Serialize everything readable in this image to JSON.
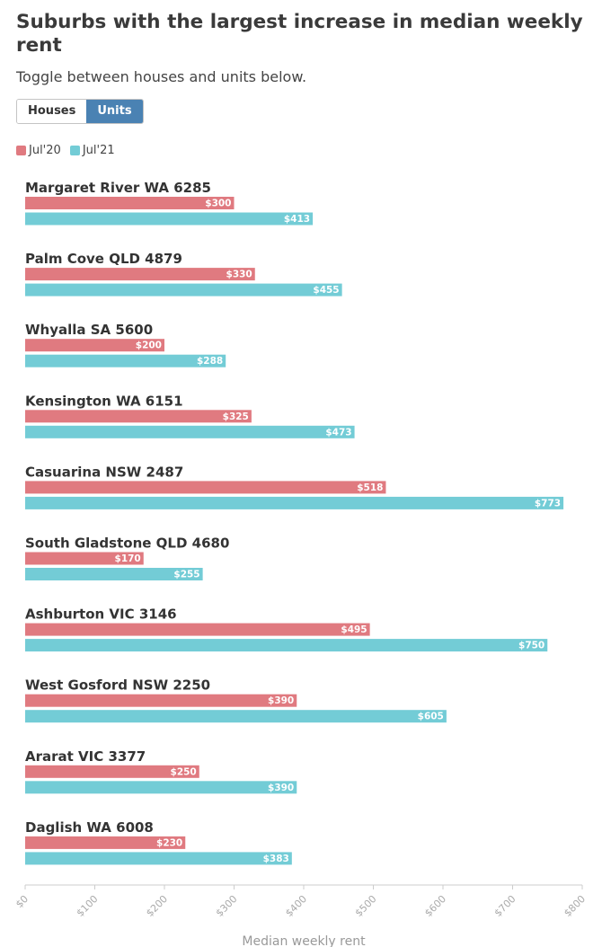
{
  "title": "Suburbs with the largest increase in median weekly rent",
  "subtitle": "Toggle between houses and units below.",
  "toggle": {
    "houses_label": "Houses",
    "units_label": "Units",
    "selected": "Units"
  },
  "colors": {
    "jul20": "#e07a80",
    "jul21": "#73ccd6",
    "toggle_active": "#4a82b3"
  },
  "chart_data": {
    "type": "bar",
    "orientation": "horizontal",
    "categories": [
      "Margaret River WA 6285",
      "Palm Cove QLD 4879",
      "Whyalla SA 5600",
      "Kensington WA 6151",
      "Casuarina NSW 2487",
      "South Gladstone QLD 4680",
      "Ashburton VIC 3146",
      "West Gosford NSW 2250",
      "Ararat VIC 3377",
      "Daglish WA 6008"
    ],
    "series": [
      {
        "name": "Jul'20",
        "values": [
          300,
          330,
          200,
          325,
          518,
          170,
          495,
          390,
          250,
          230
        ]
      },
      {
        "name": "Jul'21",
        "values": [
          413,
          455,
          288,
          473,
          773,
          255,
          750,
          605,
          390,
          383
        ]
      }
    ],
    "value_prefix": "$",
    "xlim": [
      0,
      800
    ],
    "xticks": [
      "$0",
      "$100",
      "$200",
      "$300",
      "$400",
      "$500",
      "$600",
      "$700",
      "$800"
    ],
    "xtick_values": [
      0,
      100,
      200,
      300,
      400,
      500,
      600,
      700,
      800
    ],
    "xlabel": "Median weekly rent",
    "ylabel": "",
    "legend_position": "top-left",
    "grid": false
  }
}
